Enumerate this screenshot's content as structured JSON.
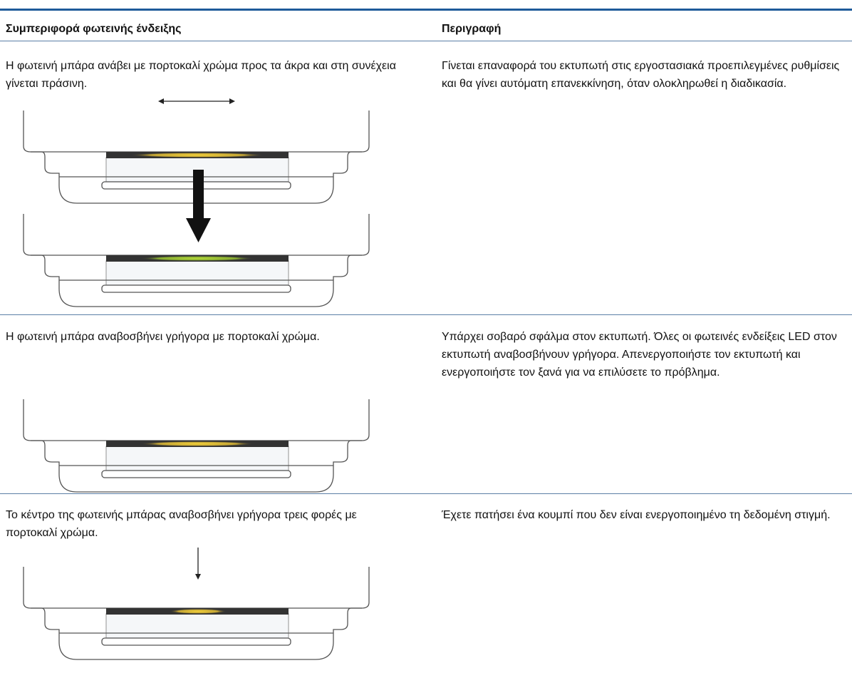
{
  "table": {
    "headers": [
      "Συμπεριφορά φωτεινής ένδειξης",
      "Περιγραφή"
    ],
    "rows": [
      [
        "Η φωτεινή μπάρα ανάβει με πορτοκαλί χρώμα προς τα άκρα και στη συνέχεια γίνεται πράσινη.",
        "Γίνεται επαναφορά του εκτυπωτή στις εργοστασιακά προεπιλεγμένες ρυθμίσεις και θα γίνει αυτόματη επανεκκίνηση, όταν ολοκληρωθεί η διαδικασία."
      ],
      [
        "Η φωτεινή μπάρα αναβοσβήνει γρήγορα με πορτοκαλί χρώμα.",
        "Υπάρχει σοβαρό σφάλμα στον εκτυπωτή. Όλες οι φωτεινές ενδείξεις LED στον εκτυπωτή αναβοσβήνουν γρήγορα. Απενεργοποιήστε τον εκτυπωτή και ενεργοποιήστε τον ξανά για να επιλύσετε το πρόβλημα."
      ],
      [
        "Το κέντρο της φωτεινής μπάρας αναβοσβήνει γρήγορα τρεις φορές με πορτοκαλί χρώμα.",
        "Έχετε πατήσει ένα κουμπί που δεν είναι ενεργοποιημένο τη δεδομένη στιγμή."
      ]
    ]
  }
}
